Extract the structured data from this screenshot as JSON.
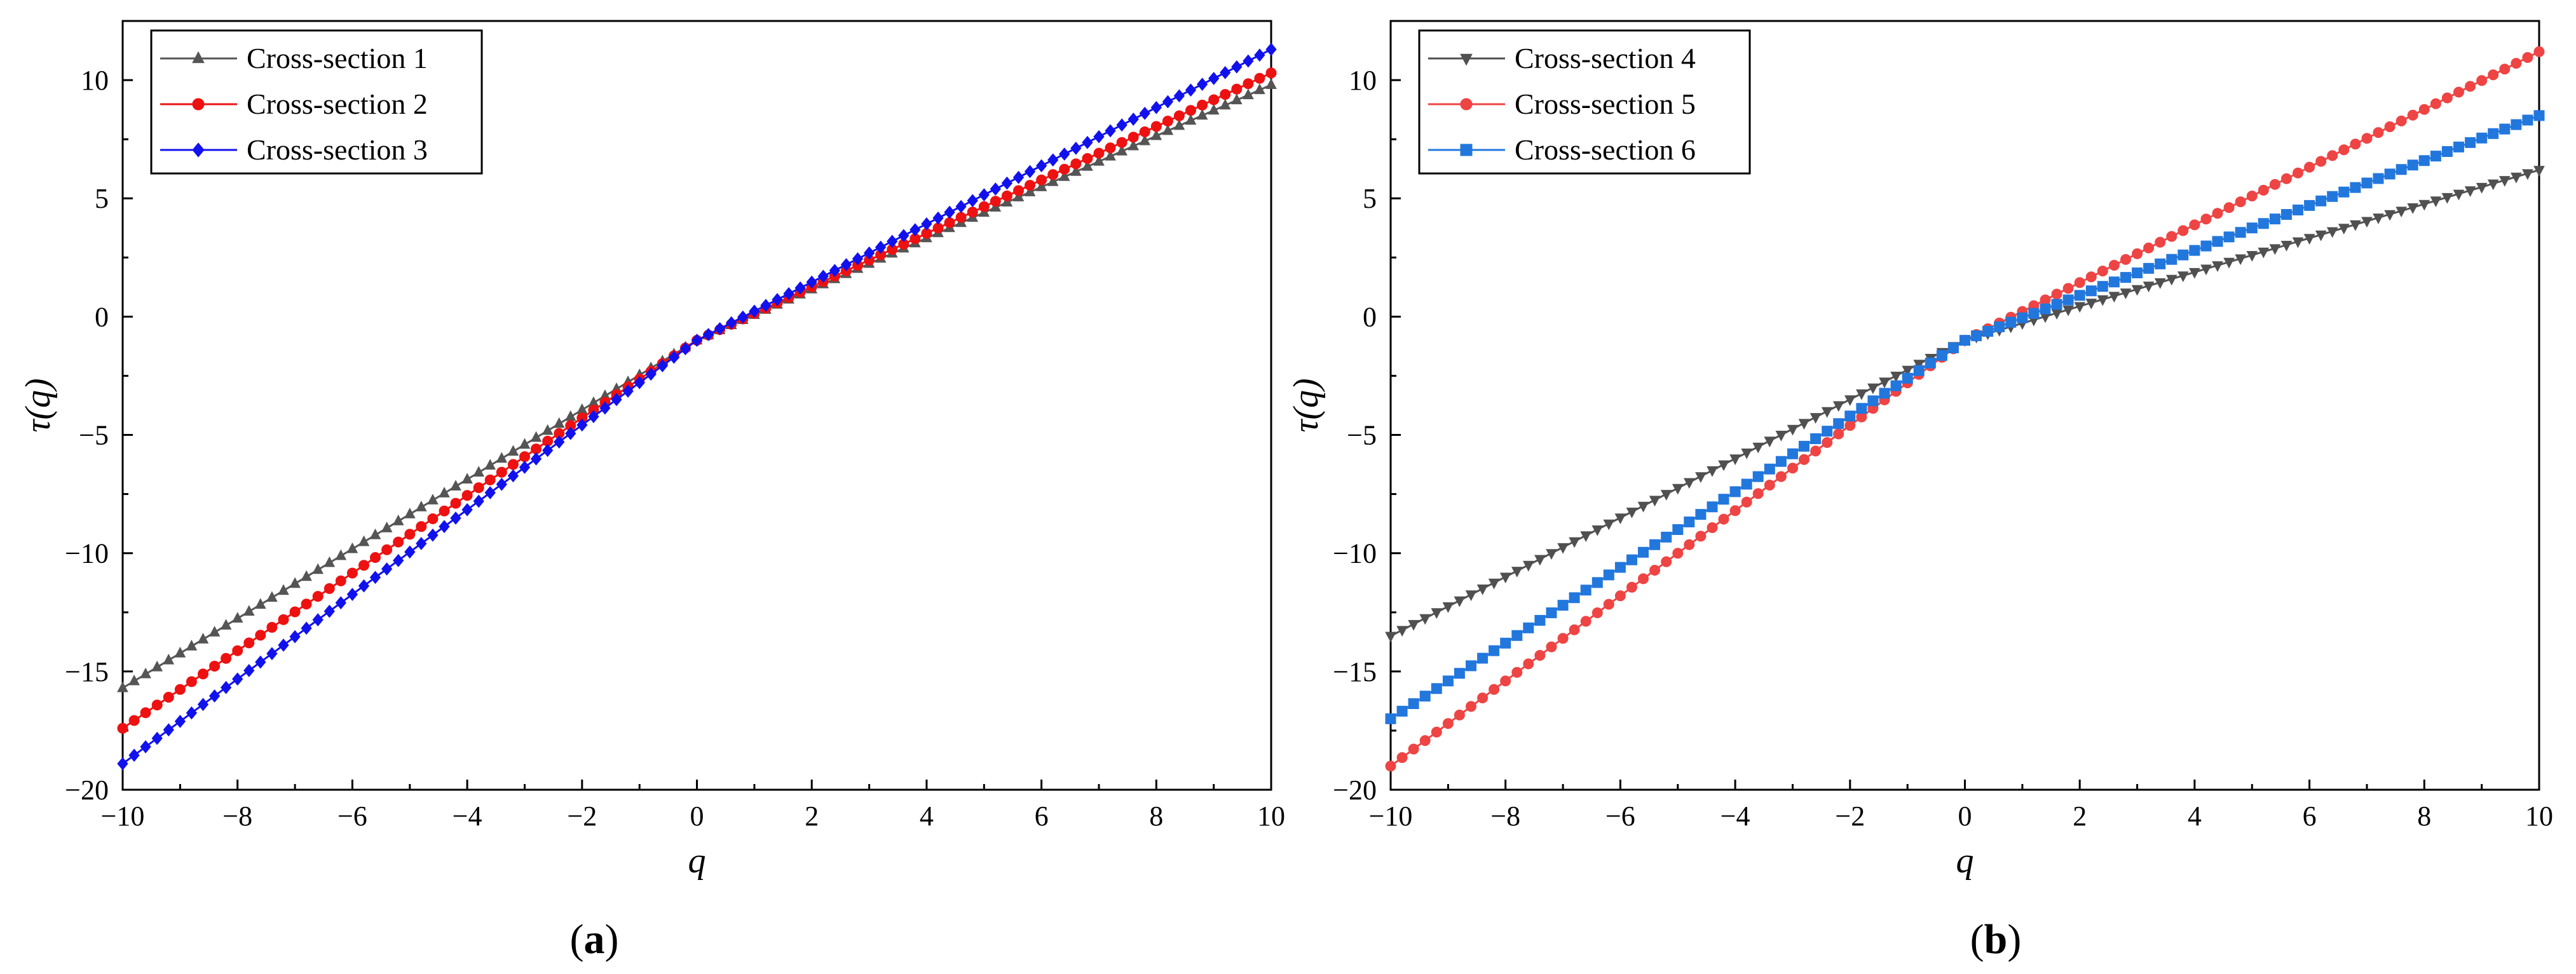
{
  "chart_data": [
    {
      "type": "line",
      "panel_label": "a",
      "xlabel": "q",
      "ylabel": "τ(q)",
      "xlim": [
        -10,
        10
      ],
      "ylim": [
        -20,
        12.5
      ],
      "xticks": [
        -10,
        -8,
        -6,
        -4,
        -2,
        0,
        2,
        4,
        6,
        8,
        10
      ],
      "yticks": [
        -20,
        -15,
        -10,
        -5,
        0,
        5,
        10
      ],
      "xtick_labels": [
        "−10",
        "−8",
        "−6",
        "−4",
        "−2",
        "0",
        "2",
        "4",
        "6",
        "8",
        "10"
      ],
      "ytick_labels": [
        "−20",
        "−15",
        "−10",
        "−5",
        "0",
        "5",
        "10"
      ],
      "legend_position": "top-left",
      "series": [
        {
          "name": "Cross-section 1",
          "color": "#555555",
          "marker": "triangle-up",
          "q0": -1.0,
          "slope_neg": 1.47,
          "slope_pos": 1.08
        },
        {
          "name": "Cross-section 2",
          "color": "#ee1111",
          "marker": "circle",
          "q0": -1.0,
          "slope_neg": 1.64,
          "slope_pos": 1.13
        },
        {
          "name": "Cross-section 3",
          "color": "#1111ee",
          "marker": "diamond",
          "q0": -1.0,
          "slope_neg": 1.79,
          "slope_pos": 1.23
        }
      ]
    },
    {
      "type": "line",
      "panel_label": "b",
      "xlabel": "q",
      "ylabel": "τ(q)",
      "xlim": [
        -10,
        10
      ],
      "ylim": [
        -20,
        12.5
      ],
      "xticks": [
        -10,
        -8,
        -6,
        -4,
        -2,
        0,
        2,
        4,
        6,
        8,
        10
      ],
      "yticks": [
        -20,
        -15,
        -10,
        -5,
        0,
        5,
        10
      ],
      "xtick_labels": [
        "−10",
        "−8",
        "−6",
        "−4",
        "−2",
        "0",
        "2",
        "4",
        "6",
        "8",
        "10"
      ],
      "ytick_labels": [
        "−20",
        "−15",
        "−10",
        "−5",
        "0",
        "5",
        "10"
      ],
      "legend_position": "top-left",
      "series": [
        {
          "name": "Cross-section 4",
          "color": "#505050",
          "marker": "triangle-down",
          "q0": -1.0,
          "slope_neg": 1.25,
          "slope_pos": 0.72
        },
        {
          "name": "Cross-section 5",
          "color": "#ee4444",
          "marker": "circle",
          "q0": -1.0,
          "slope_neg": 1.8,
          "slope_pos": 1.22
        },
        {
          "name": "Cross-section 6",
          "color": "#2277dd",
          "marker": "square",
          "q0": -1.0,
          "slope_neg": 1.6,
          "slope_pos": 0.95
        }
      ]
    }
  ]
}
